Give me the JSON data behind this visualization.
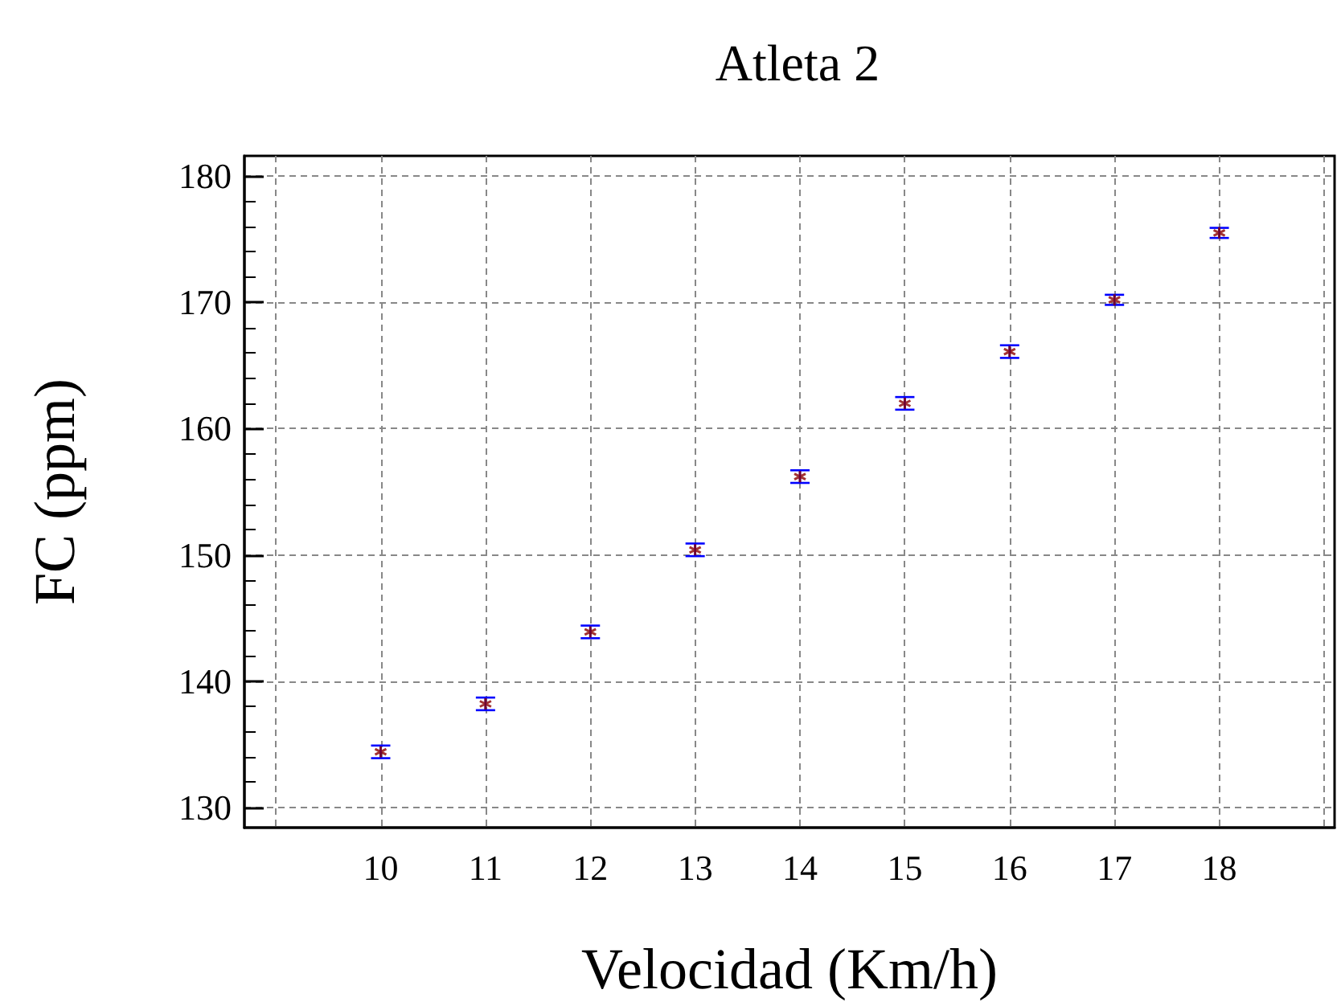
{
  "chart_data": {
    "type": "scatter",
    "title": "Atleta 2",
    "xlabel": "Velocidad (Km/h)",
    "ylabel": "FC (ppm)",
    "x": [
      10,
      11,
      12,
      13,
      14,
      15,
      16,
      17,
      18
    ],
    "series": [
      {
        "color": "#8b0000",
        "values": [
          134.4,
          138.2,
          143.9,
          150.4,
          156.2,
          162.0,
          166.1,
          170.2,
          175.5
        ],
        "errors": [
          0.5,
          0.5,
          0.5,
          0.5,
          0.5,
          0.5,
          0.5,
          0.4,
          0.4
        ]
      }
    ],
    "xlim": [
      8.7,
      19.1
    ],
    "xticks": [
      {
        "value": 9,
        "label": null
      },
      10,
      11,
      12,
      13,
      14,
      15,
      16,
      17,
      18,
      {
        "value": 19,
        "label": null
      }
    ],
    "ylim": [
      128.4,
      181.6
    ],
    "yticks": [
      130,
      140,
      150,
      160,
      170,
      180
    ],
    "grid": true,
    "marker": "cross"
  }
}
